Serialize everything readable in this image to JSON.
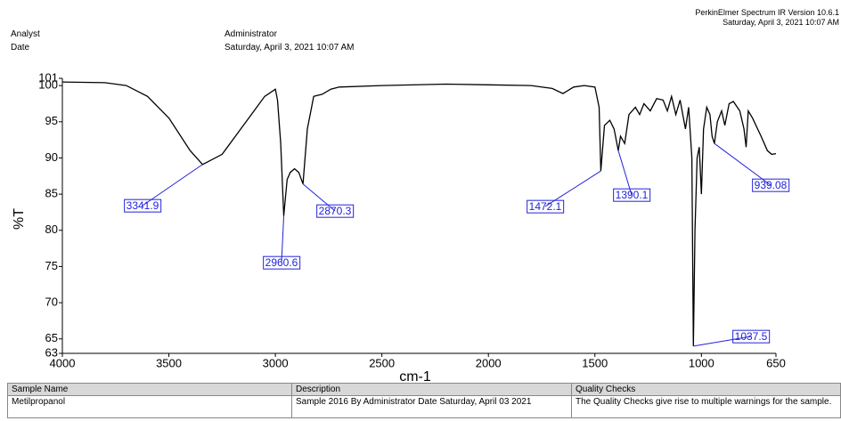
{
  "header": {
    "analyst_label": "Analyst",
    "analyst": "Administrator",
    "date_label": "Date",
    "date": "Saturday, April 3, 2021 10:07 AM",
    "software": "PerkinElmer Spectrum IR Version 10.6.1",
    "software_date": "Saturday, April 3, 2021 10:07 AM"
  },
  "chart_data": {
    "type": "line",
    "xlabel": "cm-1",
    "ylabel": "%T",
    "color": "#000000",
    "annotation_color": "#2222dd",
    "xlim": [
      4000,
      650
    ],
    "ylim": [
      63,
      101
    ],
    "xticks": [
      4000,
      3500,
      3000,
      2500,
      2000,
      1500,
      1000,
      650
    ],
    "yticks": [
      63,
      65,
      70,
      75,
      80,
      85,
      90,
      95,
      100,
      101
    ],
    "x": [
      4000,
      3800,
      3700,
      3600,
      3500,
      3400,
      3341.9,
      3250,
      3150,
      3050,
      3000,
      2990,
      2975,
      2960.6,
      2945,
      2930,
      2910,
      2890,
      2870.3,
      2850,
      2820,
      2780,
      2740,
      2700,
      2500,
      2200,
      2000,
      1800,
      1700,
      1650,
      1600,
      1550,
      1500,
      1480,
      1472.1,
      1455,
      1430,
      1410,
      1390.1,
      1380,
      1360,
      1340,
      1310,
      1290,
      1270,
      1240,
      1210,
      1180,
      1160,
      1140,
      1120,
      1100,
      1075,
      1060,
      1045,
      1037.5,
      1030,
      1020,
      1010,
      1000,
      990,
      975,
      960,
      950,
      939.08,
      925,
      905,
      890,
      870,
      850,
      820,
      800,
      790,
      780,
      760,
      720,
      690,
      670,
      650
    ],
    "values": [
      100.5,
      100.4,
      100.0,
      98.5,
      95.5,
      91.0,
      89.1,
      90.5,
      94.5,
      98.5,
      99.5,
      98,
      92,
      82.0,
      87,
      88,
      88.5,
      88,
      86.4,
      94,
      98.5,
      98.8,
      99.5,
      99.8,
      100.0,
      100.2,
      100.1,
      100,
      99.6,
      98.9,
      99.8,
      100,
      99.8,
      97,
      88.2,
      94.5,
      95.2,
      94,
      91.0,
      93,
      92.0,
      96,
      97,
      96,
      97.5,
      96.5,
      98.2,
      98,
      96.5,
      98.5,
      96,
      98,
      94,
      97,
      90,
      64.0,
      80,
      90,
      91.5,
      85.0,
      94,
      97,
      96,
      93,
      92.0,
      95,
      96.5,
      94.5,
      97.5,
      97.8,
      96.5,
      94,
      91.5,
      96.5,
      95.5,
      93,
      91,
      90.5,
      90.6
    ],
    "annotations": [
      {
        "x": 3341.9,
        "y": 89.1
      },
      {
        "x": 2960.6,
        "y": 82.0
      },
      {
        "x": 2870.3,
        "y": 86.4
      },
      {
        "x": 1472.1,
        "y": 88.2
      },
      {
        "x": 1390.1,
        "y": 91.0
      },
      {
        "x": 939.08,
        "y": 92.0
      },
      {
        "x": 1037.5,
        "y": 64.0
      }
    ]
  },
  "table": {
    "columns": [
      "Sample Name",
      "Description",
      "Quality Checks"
    ],
    "rows": [
      [
        "Metilpropanol",
        "Sample 2016 By Administrator Date Saturday, April 03 2021",
        "The Quality Checks give rise to multiple warnings for the sample."
      ]
    ]
  }
}
